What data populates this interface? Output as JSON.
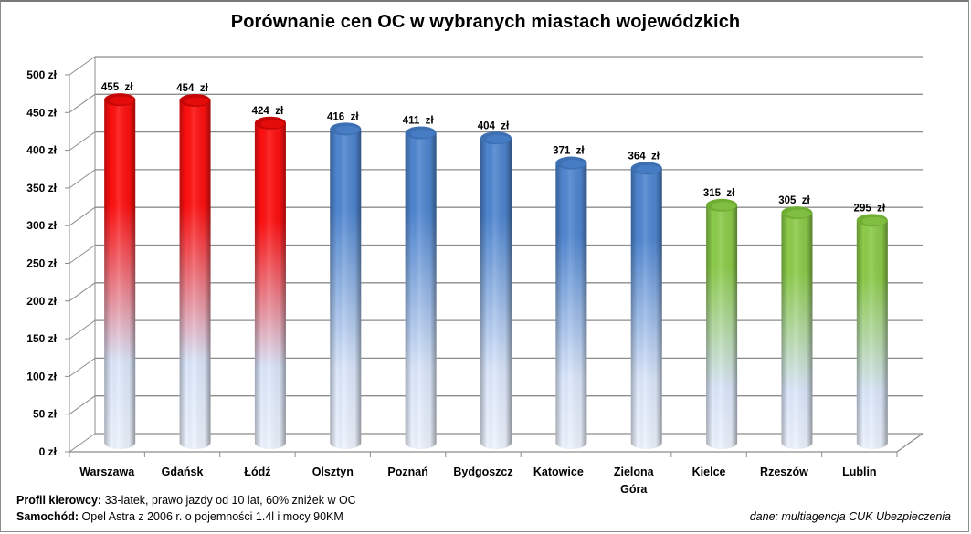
{
  "chart_data": {
    "type": "bar",
    "subtype": "3d-cylinder",
    "title": "Porównanie cen OC w wybranych miastach wojewódzkich",
    "xlabel": "",
    "ylabel": "",
    "ylim": [
      0,
      500
    ],
    "ytick_step": 50,
    "yticks": [
      "0 zł",
      "50 zł",
      "100 zł",
      "150 zł",
      "200 zł",
      "250 zł",
      "300 zł",
      "350 zł",
      "400 zł",
      "450 zł",
      "500 zł"
    ],
    "grid": true,
    "legend": null,
    "categories": [
      "Warszawa",
      "Gdańsk",
      "Łódź",
      "Olsztyn",
      "Poznań",
      "Bydgoszcz",
      "Katowice",
      "Zielona Góra",
      "Kielce",
      "Rzeszów",
      "Lublin"
    ],
    "values": [
      455,
      454,
      424,
      416,
      411,
      404,
      371,
      364,
      315,
      305,
      295
    ],
    "value_labels": [
      "455 zł",
      "454 zł",
      "424 zł",
      "416 zł",
      "411 zł",
      "404 zł",
      "371 zł",
      "364 zł",
      "315 zł",
      "305 zł",
      "295 zł"
    ],
    "bar_groups": [
      "red",
      "red",
      "red",
      "blue",
      "blue",
      "blue",
      "blue",
      "blue",
      "green",
      "green",
      "green"
    ],
    "unit": "zł"
  },
  "colors": {
    "red": "#ff1010",
    "blue": "#4f86d0",
    "green": "#8ccc4a",
    "base": "#dbe7fb",
    "grid": "#8c8c8c"
  },
  "footer": {
    "profile_label": "Profil kierowcy:",
    "profile_text": "33-latek, prawo jazdy od 10 lat, 60% zniżek w OC",
    "car_label": "Samochód:",
    "car_text": "Opel Astra z 2006 r. o pojemności 1.4l i mocy 90KM",
    "source": "dane: multiagencja CUK Ubezpieczenia"
  }
}
